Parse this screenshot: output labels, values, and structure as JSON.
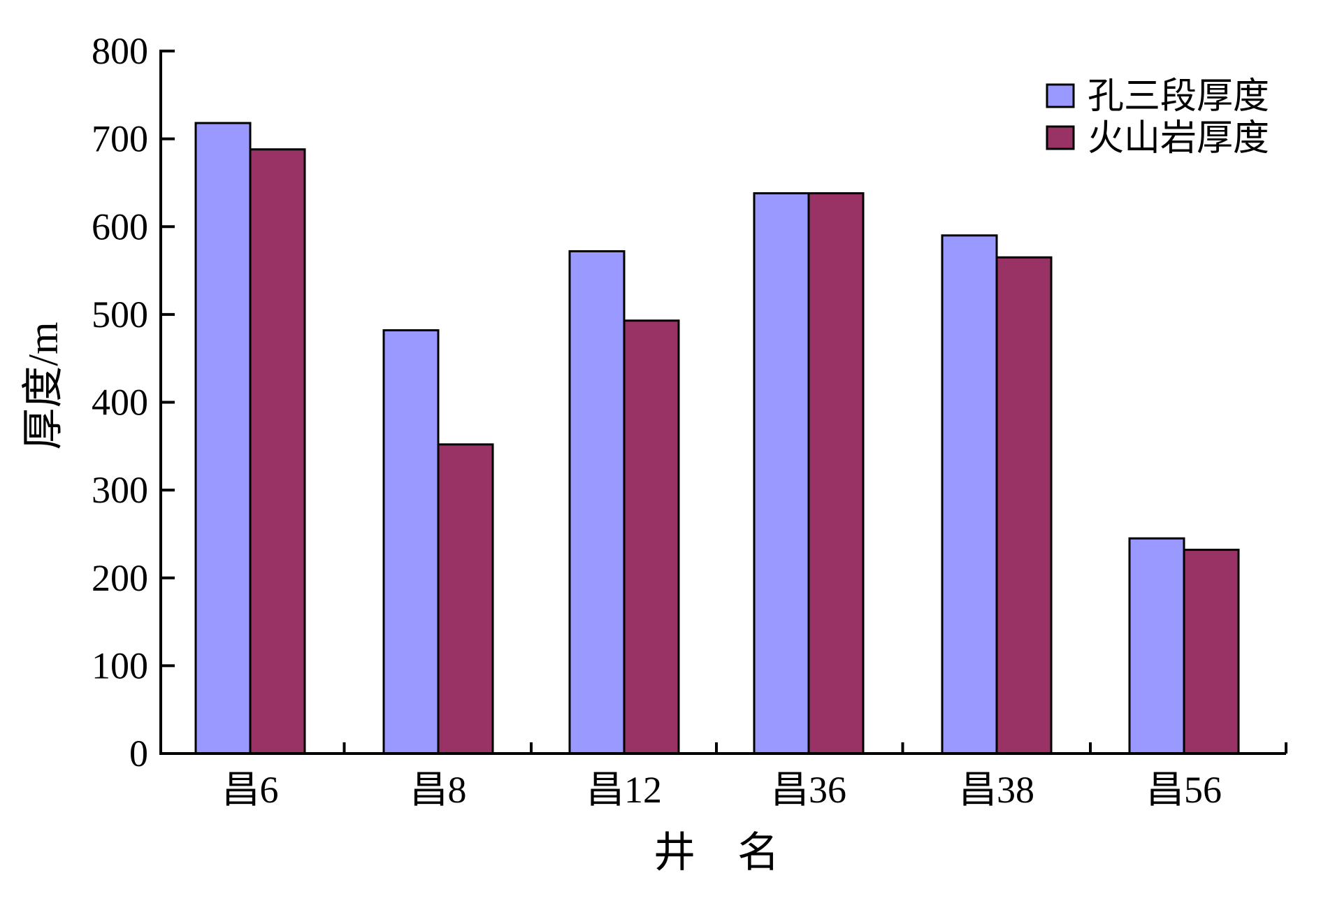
{
  "chart_data": {
    "type": "bar",
    "categories": [
      "昌6",
      "昌8",
      "昌12",
      "昌36",
      "昌38",
      "昌56"
    ],
    "series": [
      {
        "name": "孔三段厚度",
        "color": "#9999ff",
        "values": [
          718,
          482,
          572,
          638,
          590,
          245
        ]
      },
      {
        "name": "火山岩厚度",
        "color": "#993366",
        "values": [
          688,
          352,
          493,
          638,
          565,
          232
        ]
      }
    ],
    "xlabel": "井　名",
    "ylabel": "厚度/m",
    "ylim": [
      0,
      800
    ],
    "yticks": [
      0,
      100,
      200,
      300,
      400,
      500,
      600,
      700,
      800
    ],
    "grid": false,
    "legend_position": "top-right"
  }
}
